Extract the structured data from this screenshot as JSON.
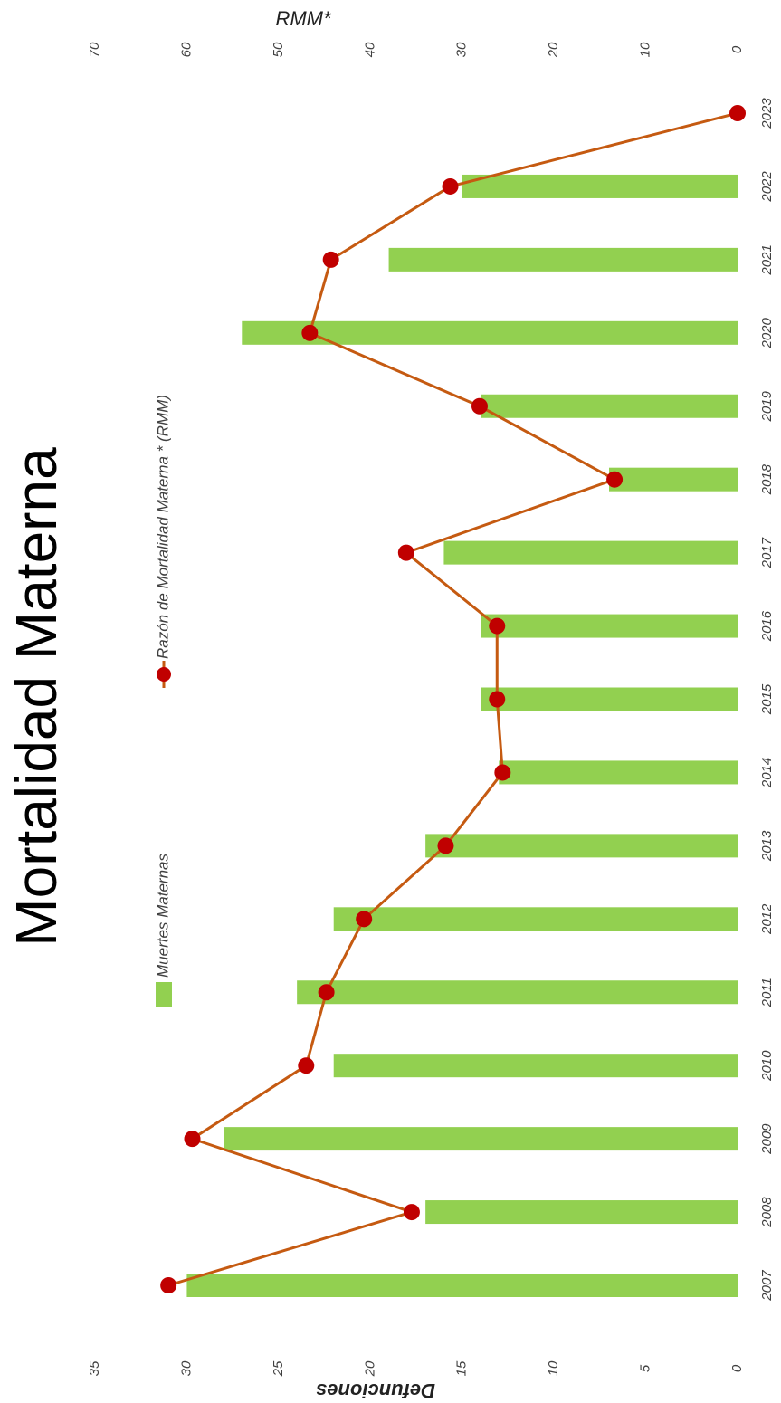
{
  "chart_data": {
    "type": "combo",
    "title": "Mortalidad Materna",
    "categories": [
      "2007",
      "2008",
      "2009",
      "2010",
      "2011",
      "2012",
      "2013",
      "2014",
      "2015",
      "2016",
      "2017",
      "2018",
      "2019",
      "2020",
      "2021",
      "2022",
      "2023"
    ],
    "series": [
      {
        "name": "Muertes Maternas",
        "type": "bar",
        "color": "#92d050",
        "values": [
          30,
          17,
          28,
          22,
          24,
          22,
          17,
          13,
          14,
          14,
          16,
          7,
          14,
          27,
          19,
          15,
          0
        ]
      },
      {
        "name": "Razón de Mortalidad Materna * (RMM)",
        "type": "line",
        "axis": "y2",
        "color": "#c55a11",
        "marker_color": "#c00000",
        "values": [
          62.0,
          35.5,
          59.4,
          47.0,
          44.8,
          40.7,
          31.8,
          25.6,
          26.2,
          26.2,
          36.1,
          13.4,
          28.1,
          46.6,
          44.3,
          31.3,
          0
        ]
      }
    ],
    "ylabel": "Defunciones",
    "y2label": "RMM*",
    "ylim": [
      0,
      35
    ],
    "yticks": [
      0,
      5,
      10,
      15,
      20,
      25,
      30,
      35
    ],
    "y2lim": [
      0,
      70
    ],
    "y2ticks": [
      0,
      10,
      20,
      30,
      40,
      50,
      60,
      70
    ],
    "grid": false
  }
}
